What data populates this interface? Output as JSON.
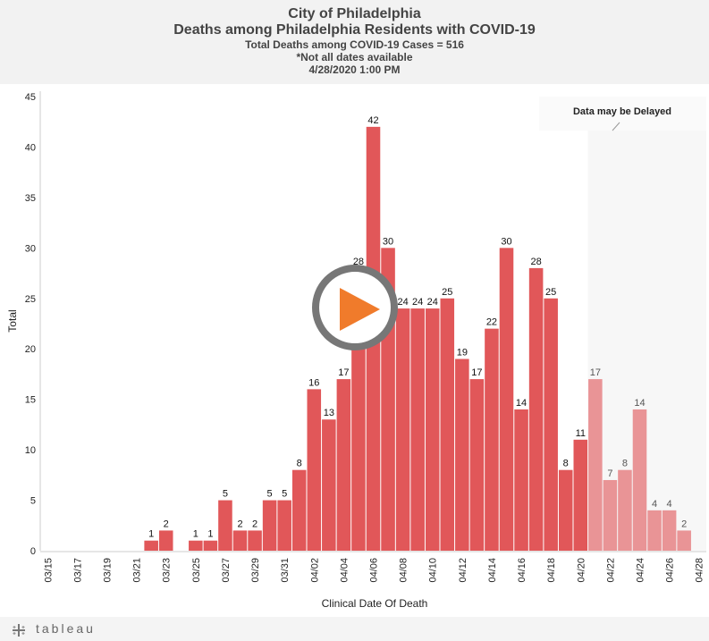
{
  "header": {
    "title_line1": "City of Philadelphia",
    "title_line2": "Deaths among Philadelphia Residents with COVID-19",
    "subtitle_total": "Total Deaths among COVID-19 Cases = 516",
    "subtitle_note": "*Not all dates available",
    "timestamp": "4/28/2020 1:00 PM"
  },
  "footer": {
    "brand": "tableau"
  },
  "colors": {
    "bar": "#e15759",
    "bar_delayed": "#e99496",
    "delayed_label": "#555555",
    "play_ring": "#777777",
    "play_triangle": "#f07b2b"
  },
  "annotation": {
    "text": "Data may be Delayed"
  },
  "play_button": {
    "icon": "play-icon"
  },
  "chart_data": {
    "type": "bar",
    "title": "Deaths among Philadelphia Residents with COVID-19",
    "xlabel": "Clinical Date Of Death",
    "ylabel": "Total",
    "ylim": [
      0,
      45
    ],
    "yticks": [
      0,
      5,
      10,
      15,
      20,
      25,
      30,
      35,
      40,
      45
    ],
    "categories": [
      "03/15",
      "03/16",
      "03/17",
      "03/18",
      "03/19",
      "03/20",
      "03/21",
      "03/22",
      "03/23",
      "03/24",
      "03/25",
      "03/26",
      "03/27",
      "03/28",
      "03/29",
      "03/30",
      "03/31",
      "04/01",
      "04/02",
      "04/03",
      "04/04",
      "04/05",
      "04/06",
      "04/07",
      "04/08",
      "04/09",
      "04/10",
      "04/11",
      "04/12",
      "04/13",
      "04/14",
      "04/15",
      "04/16",
      "04/17",
      "04/18",
      "04/19",
      "04/20",
      "04/21",
      "04/22",
      "04/23",
      "04/24",
      "04/25",
      "04/26",
      "04/27",
      "04/28"
    ],
    "values": [
      null,
      null,
      null,
      null,
      null,
      null,
      null,
      1,
      2,
      null,
      1,
      1,
      5,
      2,
      2,
      5,
      5,
      8,
      16,
      13,
      17,
      28,
      42,
      30,
      24,
      24,
      24,
      25,
      19,
      17,
      22,
      30,
      14,
      28,
      25,
      8,
      11,
      17,
      7,
      8,
      14,
      4,
      4,
      2,
      null
    ],
    "xtick_labels": [
      "03/15",
      "03/17",
      "03/19",
      "03/21",
      "03/23",
      "03/25",
      "03/27",
      "03/29",
      "03/31",
      "04/02",
      "04/04",
      "04/06",
      "04/08",
      "04/10",
      "04/12",
      "04/14",
      "04/16",
      "04/18",
      "04/20",
      "04/22",
      "04/24",
      "04/26",
      "04/28"
    ],
    "delayed_from": "04/21",
    "grid": false,
    "legend": "none"
  }
}
